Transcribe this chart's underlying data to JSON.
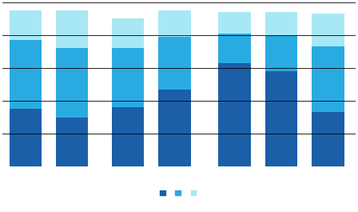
{
  "series1": [
    35,
    30,
    36,
    47,
    63,
    58,
    33
  ],
  "series2": [
    42,
    42,
    36,
    32,
    18,
    22,
    40
  ],
  "series3": [
    18,
    23,
    18,
    16,
    13,
    14,
    20
  ],
  "color1": "#1b5fa8",
  "color2": "#29abe2",
  "color3": "#a8e8f5",
  "bar_width": 0.7,
  "group_positions": [
    0,
    1,
    2.2,
    3.2,
    4.5,
    5.5,
    6.5
  ],
  "xlim": [
    -0.5,
    7.1
  ],
  "ylim": [
    0,
    100
  ],
  "background_color": "#ffffff",
  "plot_bg": "#ffffff",
  "grid_color": "#000000",
  "legend_colors": [
    "#1b5fa8",
    "#29abe2",
    "#a8e8f5"
  ],
  "legend_labels": [
    "",
    "",
    ""
  ]
}
